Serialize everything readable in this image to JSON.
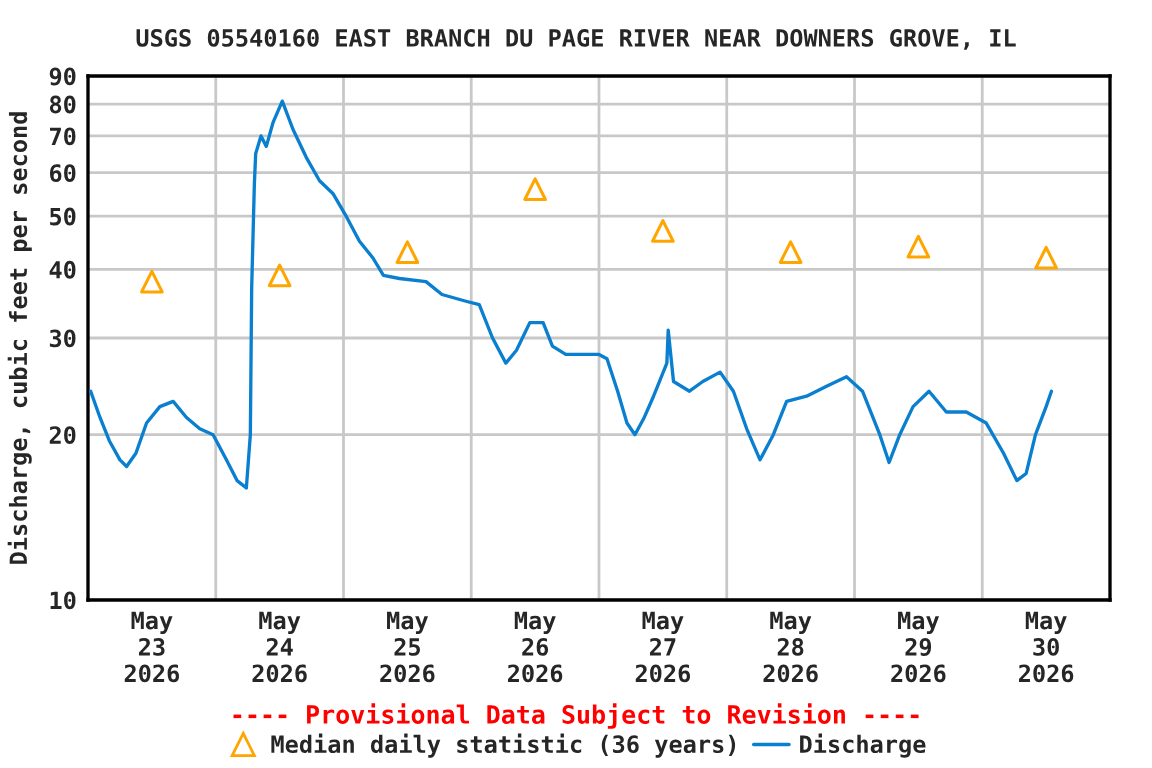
{
  "chart_data": {
    "type": "line",
    "title": "USGS 05540160 EAST BRANCH DU PAGE RIVER NEAR DOWNERS GROVE, IL",
    "ylabel": "Discharge, cubic feet per second",
    "annotations": [
      "---- Provisional Data Subject to Revision ----"
    ],
    "log": "y",
    "grid": true,
    "legend": "bottom",
    "xlim": [
      "2026-05-23T00:00",
      "2026-05-31T00:00"
    ],
    "xticks": [
      {
        "value": "2026-05-23T12:00",
        "label": "May\n23\n2026"
      },
      {
        "value": "2026-05-24T12:00",
        "label": "May\n24\n2026"
      },
      {
        "value": "2026-05-25T12:00",
        "label": "May\n25\n2026"
      },
      {
        "value": "2026-05-26T12:00",
        "label": "May\n26\n2026"
      },
      {
        "value": "2026-05-27T12:00",
        "label": "May\n27\n2026"
      },
      {
        "value": "2026-05-28T12:00",
        "label": "May\n28\n2026"
      },
      {
        "value": "2026-05-29T12:00",
        "label": "May\n29\n2026"
      },
      {
        "value": "2026-05-30T12:00",
        "label": "May\n30\n2026"
      },
      {
        "value": "2026-05-24T00:00",
        "label": null
      },
      {
        "value": "2026-05-25T00:00",
        "label": null
      },
      {
        "value": "2026-05-26T00:00",
        "label": null
      },
      {
        "value": "2026-05-27T00:00",
        "label": null
      },
      {
        "value": "2026-05-28T00:00",
        "label": null
      },
      {
        "value": "2026-05-29T00:00",
        "label": null
      },
      {
        "value": "2026-05-30T00:00",
        "label": null
      }
    ],
    "ylim": [
      10,
      90
    ],
    "yticks": [
      10,
      20,
      30,
      40,
      50,
      60,
      70,
      80,
      90
    ],
    "series": [
      {
        "name": "Median daily statistic (36 years)",
        "type": "scatter",
        "marker": "triangle",
        "color": "#ffa500",
        "x": [
          "2026-05-23T12:00",
          "2026-05-24T12:00",
          "2026-05-25T12:00",
          "2026-05-26T12:00",
          "2026-05-27T12:00",
          "2026-05-28T12:00",
          "2026-05-29T12:00",
          "2026-05-30T12:00"
        ],
        "values": [
          38,
          39,
          43,
          56,
          47,
          43,
          44,
          42
        ]
      },
      {
        "name": "Discharge",
        "color": "#0a7fd0",
        "x": [
          "2026-05-23T00:30",
          "2026-05-23T02:15",
          "2026-05-23T04:00",
          "2026-05-23T06:00",
          "2026-05-23T07:15",
          "2026-05-23T09:00",
          "2026-05-23T11:00",
          "2026-05-23T13:30",
          "2026-05-23T16:00",
          "2026-05-23T18:30",
          "2026-05-23T21:00",
          "2026-05-23T23:30",
          "2026-05-24T02:00",
          "2026-05-24T04:00",
          "2026-05-24T05:45",
          "2026-05-24T06:30",
          "2026-05-24T06:45",
          "2026-05-24T07:15",
          "2026-05-24T07:30",
          "2026-05-24T08:30",
          "2026-05-24T09:30",
          "2026-05-24T10:45",
          "2026-05-24T12:30",
          "2026-05-24T14:30",
          "2026-05-24T17:00",
          "2026-05-24T19:30",
          "2026-05-24T22:00",
          "2026-05-25T00:30",
          "2026-05-25T03:00",
          "2026-05-25T05:30",
          "2026-05-25T07:30",
          "2026-05-25T10:30",
          "2026-05-25T15:30",
          "2026-05-25T18:30",
          "2026-05-25T23:00",
          "2026-05-26T01:30",
          "2026-05-26T04:00",
          "2026-05-26T06:30",
          "2026-05-26T08:30",
          "2026-05-26T11:00",
          "2026-05-26T13:30",
          "2026-05-26T15:15",
          "2026-05-26T17:45",
          "2026-05-26T21:30",
          "2026-05-27T00:00",
          "2026-05-27T01:30",
          "2026-05-27T03:30",
          "2026-05-27T05:15",
          "2026-05-27T06:45",
          "2026-05-27T08:30",
          "2026-05-27T10:15",
          "2026-05-27T12:45",
          "2026-05-27T13:00",
          "2026-05-27T14:00",
          "2026-05-27T17:00",
          "2026-05-27T19:30",
          "2026-05-27T22:45",
          "2026-05-28T01:15",
          "2026-05-28T03:45",
          "2026-05-28T06:15",
          "2026-05-28T08:45",
          "2026-05-28T11:15",
          "2026-05-28T15:00",
          "2026-05-28T18:45",
          "2026-05-28T22:30",
          "2026-05-29T01:30",
          "2026-05-29T04:45",
          "2026-05-29T06:30",
          "2026-05-29T08:30",
          "2026-05-29T11:00",
          "2026-05-29T14:00",
          "2026-05-29T17:15",
          "2026-05-29T21:00",
          "2026-05-30T00:45",
          "2026-05-30T04:00",
          "2026-05-30T06:30",
          "2026-05-30T08:15",
          "2026-05-30T10:00",
          "2026-05-30T12:00",
          "2026-05-30T13:00"
        ],
        "values": [
          24,
          21.5,
          19.5,
          18,
          17.5,
          18.5,
          21,
          22.5,
          23,
          21.5,
          20.5,
          20,
          18,
          16.5,
          16,
          20,
          37,
          57,
          65,
          70,
          67,
          74,
          81,
          72,
          64,
          58,
          55,
          50,
          45,
          42,
          39,
          38.5,
          38,
          36,
          35,
          34.5,
          30,
          27,
          28.5,
          32,
          32,
          29,
          28,
          28,
          28,
          27.5,
          24,
          21,
          20,
          21.5,
          23.5,
          27,
          31,
          25,
          24,
          25,
          26,
          24,
          20.5,
          18,
          20,
          23,
          23.5,
          24.5,
          25.5,
          24,
          20,
          17.8,
          20,
          22.5,
          24,
          22,
          22,
          21,
          18.5,
          16.5,
          17,
          20,
          22.5,
          24
        ]
      }
    ]
  }
}
